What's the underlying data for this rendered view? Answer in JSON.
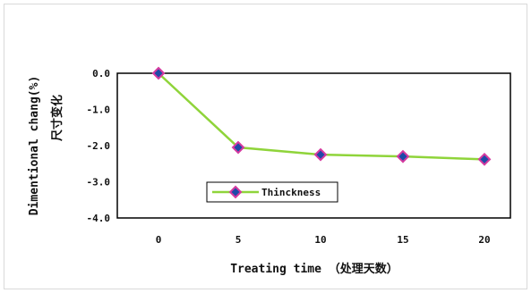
{
  "chart_data": {
    "type": "line",
    "title": "",
    "xlabel": "Treating time （处理天数）",
    "ylabel": "Dimentional chang(%)",
    "ylabel_cn": "尺寸变化",
    "x": [
      0,
      5,
      10,
      15,
      20
    ],
    "x_ticks": [
      "0",
      "5",
      "10",
      "15",
      "20"
    ],
    "y_ticks": [
      "0.0",
      "-1.0",
      "-2.0",
      "-3.0",
      "-4.0"
    ],
    "ylim": [
      -4.0,
      0.0
    ],
    "grid": false,
    "legend_position": "bottom-left",
    "series": [
      {
        "name": "Thinckness",
        "values": [
          0.0,
          -2.05,
          -2.25,
          -2.3,
          -2.38
        ],
        "line_color": "#8fd43a",
        "marker_fill": "#1f4aa8",
        "marker_edge": "#d63aa0"
      }
    ]
  }
}
